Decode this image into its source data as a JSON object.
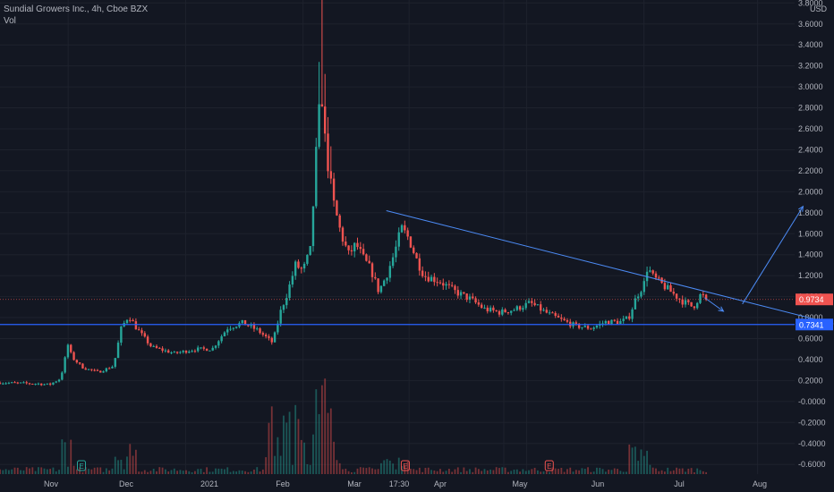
{
  "header": {
    "title": "Sundial Growers Inc., 4h, Cboe BZX",
    "volume_label": "Vol"
  },
  "colors": {
    "background": "#131722",
    "up": "#26a69a",
    "down": "#ef5350",
    "drawing": "#2962ff",
    "drawing_light": "#4c8bf5",
    "grid": "#1e222d",
    "axis_text": "#b2b5be"
  },
  "chart_data": {
    "type": "candlestick",
    "symbol": "Sundial Growers Inc.",
    "interval": "4h",
    "exchange": "Cboe BZX",
    "currency": "USD",
    "x_tick_labels": [
      "Nov",
      "Dec",
      "2021",
      "Feb",
      "Mar",
      "17:30",
      "Apr",
      "May",
      "Jun",
      "Jul",
      "Aug"
    ],
    "y_tick_labels": [
      "3.8000",
      "3.6000",
      "3.4000",
      "3.2000",
      "3.0000",
      "2.8000",
      "2.6000",
      "2.4000",
      "2.2000",
      "2.0000",
      "1.8000",
      "1.6000",
      "1.4000",
      "1.2000",
      "1.0000",
      "0.8000",
      "0.6000",
      "0.4000",
      "0.2000",
      "-0.0000",
      "-0.2000",
      "-0.4000",
      "-0.6000"
    ],
    "ylim": [
      -0.65,
      3.85
    ],
    "last_price": 0.9734,
    "last_price_label": "0.9734",
    "horizontal_level": 0.7341,
    "horizontal_level_label": "0.7341",
    "earnings_markers": [
      "E",
      "E",
      "E"
    ],
    "price_anchors": [
      {
        "d": 0,
        "p": 0.18
      },
      {
        "d": 10,
        "p": 0.17
      },
      {
        "d": 13,
        "p": 0.16
      },
      {
        "d": 16,
        "p": 0.22
      },
      {
        "d": 18,
        "p": 0.55
      },
      {
        "d": 19,
        "p": 0.42
      },
      {
        "d": 22,
        "p": 0.32
      },
      {
        "d": 26,
        "p": 0.28
      },
      {
        "d": 30,
        "p": 0.34
      },
      {
        "d": 32,
        "p": 0.7
      },
      {
        "d": 34,
        "p": 0.82
      },
      {
        "d": 36,
        "p": 0.7
      },
      {
        "d": 40,
        "p": 0.52
      },
      {
        "d": 46,
        "p": 0.46
      },
      {
        "d": 52,
        "p": 0.5
      },
      {
        "d": 56,
        "p": 0.5
      },
      {
        "d": 60,
        "p": 0.7
      },
      {
        "d": 64,
        "p": 0.75
      },
      {
        "d": 68,
        "p": 0.68
      },
      {
        "d": 72,
        "p": 0.56
      },
      {
        "d": 74,
        "p": 0.85
      },
      {
        "d": 76,
        "p": 1.05
      },
      {
        "d": 78,
        "p": 1.3
      },
      {
        "d": 80,
        "p": 1.25
      },
      {
        "d": 82,
        "p": 1.45
      },
      {
        "d": 84,
        "p": 2.7
      },
      {
        "d": 85,
        "p": 2.9
      },
      {
        "d": 86,
        "p": 2.4
      },
      {
        "d": 87,
        "p": 2.15
      },
      {
        "d": 88,
        "p": 1.9
      },
      {
        "d": 90,
        "p": 1.6
      },
      {
        "d": 92,
        "p": 1.4
      },
      {
        "d": 94,
        "p": 1.5
      },
      {
        "d": 96,
        "p": 1.36
      },
      {
        "d": 98,
        "p": 1.25
      },
      {
        "d": 100,
        "p": 1.05
      },
      {
        "d": 102,
        "p": 1.2
      },
      {
        "d": 104,
        "p": 1.4
      },
      {
        "d": 106,
        "p": 1.65
      },
      {
        "d": 108,
        "p": 1.55
      },
      {
        "d": 110,
        "p": 1.35
      },
      {
        "d": 112,
        "p": 1.2
      },
      {
        "d": 116,
        "p": 1.15
      },
      {
        "d": 120,
        "p": 1.05
      },
      {
        "d": 124,
        "p": 0.98
      },
      {
        "d": 128,
        "p": 0.88
      },
      {
        "d": 132,
        "p": 0.85
      },
      {
        "d": 136,
        "p": 0.88
      },
      {
        "d": 140,
        "p": 0.94
      },
      {
        "d": 144,
        "p": 0.85
      },
      {
        "d": 148,
        "p": 0.78
      },
      {
        "d": 152,
        "p": 0.72
      },
      {
        "d": 156,
        "p": 0.7
      },
      {
        "d": 160,
        "p": 0.76
      },
      {
        "d": 164,
        "p": 0.76
      },
      {
        "d": 166,
        "p": 0.8
      },
      {
        "d": 168,
        "p": 1.0
      },
      {
        "d": 170,
        "p": 1.12
      },
      {
        "d": 171,
        "p": 1.3
      },
      {
        "d": 172,
        "p": 1.2
      },
      {
        "d": 176,
        "p": 1.08
      },
      {
        "d": 180,
        "p": 0.96
      },
      {
        "d": 183,
        "p": 0.9
      },
      {
        "d": 185,
        "p": 1.02
      },
      {
        "d": 187,
        "p": 0.97
      }
    ],
    "drawings": {
      "trendline": {
        "from": {
          "d": 102,
          "p": 1.82
        },
        "to": {
          "d": 220,
          "p": 0.74
        }
      },
      "arrow_down": {
        "from": {
          "d": 186,
          "p": 0.99
        },
        "to": {
          "d": 191,
          "p": 0.86
        }
      },
      "arrow_up": {
        "from": {
          "d": 196,
          "p": 0.93
        },
        "to": {
          "d": 212,
          "p": 1.86
        }
      }
    },
    "grid": true,
    "legend": "top-left"
  }
}
